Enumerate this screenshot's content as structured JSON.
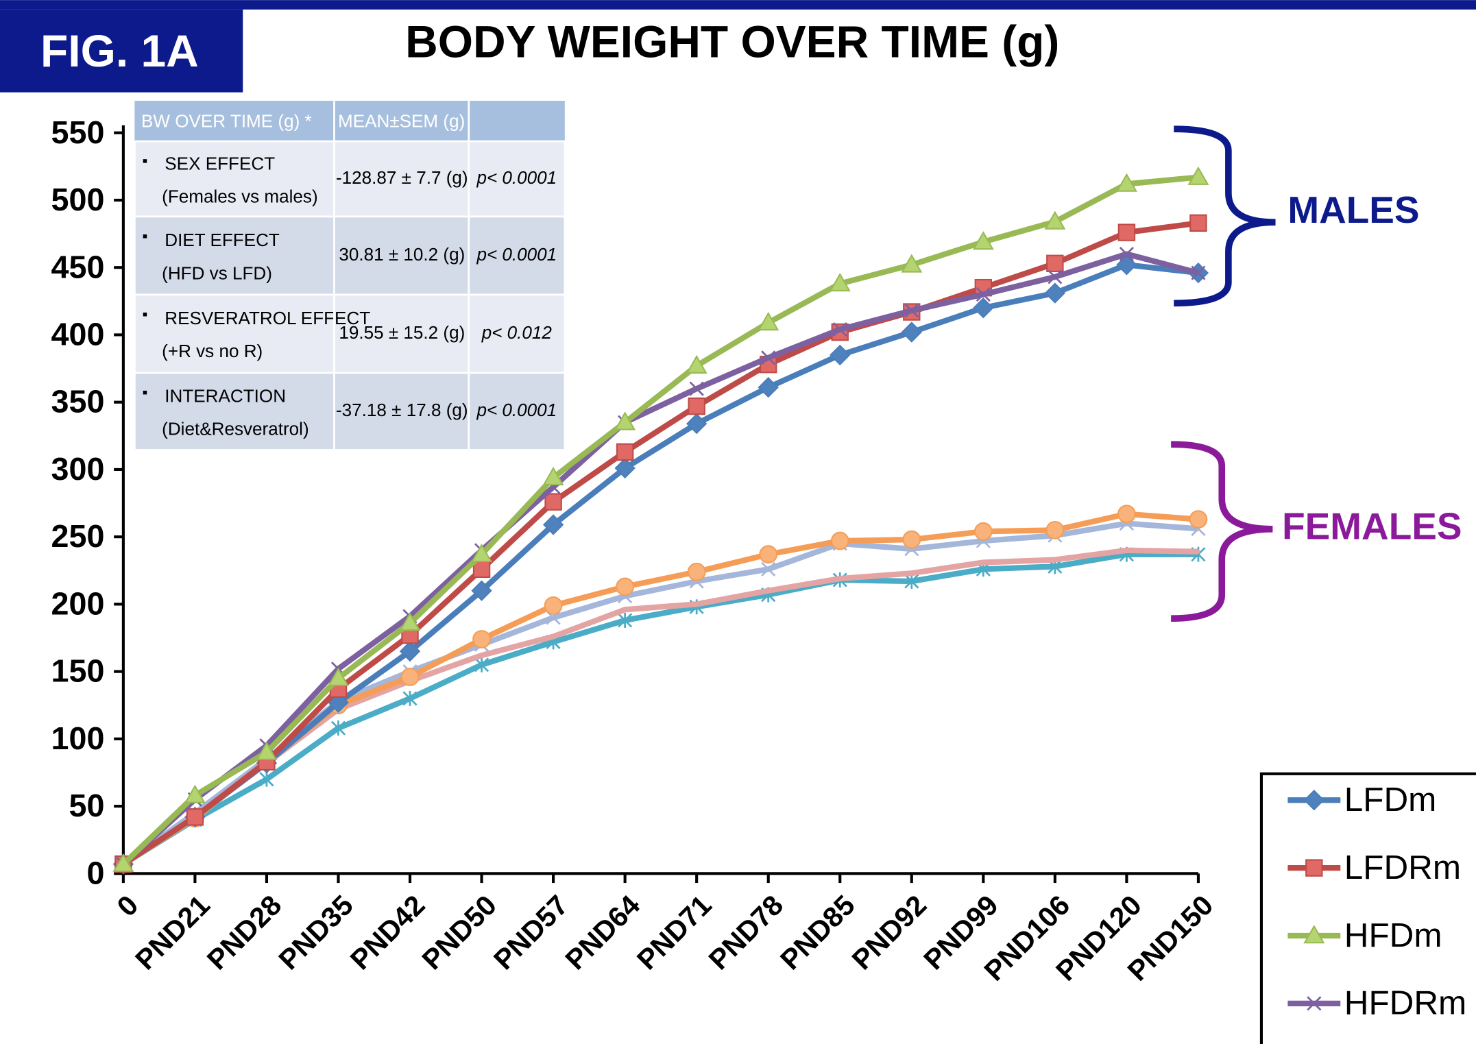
{
  "fig_label": "FIG. 1A",
  "chart_data": {
    "type": "line",
    "title": "BODY WEIGHT OVER TIME  (g)",
    "categories": [
      "0",
      "PND21",
      "PND28",
      "PND35",
      "PND42",
      "PND50",
      "PND57",
      "PND64",
      "PND71",
      "PND78",
      "PND85",
      "PND92",
      "PND99",
      "PND106",
      "PND120",
      "PND150"
    ],
    "ylim": [
      0,
      550
    ],
    "yticks": [
      0,
      50,
      100,
      150,
      200,
      250,
      300,
      350,
      400,
      450,
      500,
      550
    ],
    "legend": "lower-right",
    "annotations": [
      "MALES",
      "FEMALES"
    ],
    "series": [
      {
        "name": "LFDm",
        "color": "#4a7ebb",
        "marker": "diamond",
        "values": [
          7,
          42,
          82,
          127,
          165,
          210,
          259,
          301,
          334,
          361,
          385,
          402,
          420,
          431,
          452,
          446
        ]
      },
      {
        "name": "LFDRm",
        "color": "#be4b48",
        "marker": "square",
        "values": [
          7,
          42,
          83,
          137,
          177,
          226,
          276,
          313,
          347,
          378,
          402,
          417,
          435,
          453,
          476,
          483
        ]
      },
      {
        "name": "HFDm",
        "color": "#98b954",
        "marker": "triangle",
        "values": [
          7,
          58,
          90,
          145,
          186,
          237,
          294,
          335,
          377,
          409,
          438,
          452,
          469,
          484,
          512,
          517
        ]
      },
      {
        "name": "HFDRm",
        "color": "#7d60a0",
        "marker": "x",
        "values": [
          7,
          55,
          95,
          152,
          191,
          240,
          287,
          335,
          360,
          383,
          404,
          418,
          430,
          443,
          460,
          446
        ]
      },
      {
        "color": "#f59d56",
        "marker": "circle",
        "values": [
          7,
          41,
          83,
          125,
          146,
          174,
          199,
          213,
          224,
          237,
          247,
          248,
          254,
          255,
          267,
          263
        ]
      },
      {
        "color": "#a5b6db",
        "marker": "x",
        "values": [
          7,
          45,
          85,
          128,
          150,
          170,
          190,
          206,
          217,
          226,
          245,
          241,
          247,
          251,
          260,
          256
        ]
      },
      {
        "color": "#e3a4a3",
        "marker": "none",
        "values": [
          7,
          44,
          82,
          122,
          143,
          162,
          176,
          196,
          200,
          210,
          219,
          223,
          231,
          233,
          240,
          239
        ]
      },
      {
        "color": "#4aacc6",
        "marker": "asterisk",
        "values": [
          7,
          40,
          70,
          108,
          130,
          155,
          172,
          188,
          198,
          207,
          218,
          217,
          226,
          228,
          237,
          237
        ]
      }
    ]
  },
  "table": {
    "header": [
      "BW OVER TIME (g) *",
      "MEAN±SEM (g)"
    ],
    "rows": [
      [
        "SEX EFFECT",
        "(Females vs males)",
        "-128.87 ± 7.7 (g)",
        "p< 0.0001"
      ],
      [
        "DIET EFFECT",
        "(HFD vs LFD)",
        "30.81 ± 10.2 (g)",
        "p< 0.0001"
      ],
      [
        "RESVERATROL EFFECT",
        "(+R vs no R)",
        "19.55 ± 15.2 (g)",
        "p< 0.012"
      ],
      [
        "INTERACTION",
        "(Diet&Resveratrol)",
        "-37.18 ± 17.8 (g)",
        "p< 0.0001"
      ]
    ]
  }
}
